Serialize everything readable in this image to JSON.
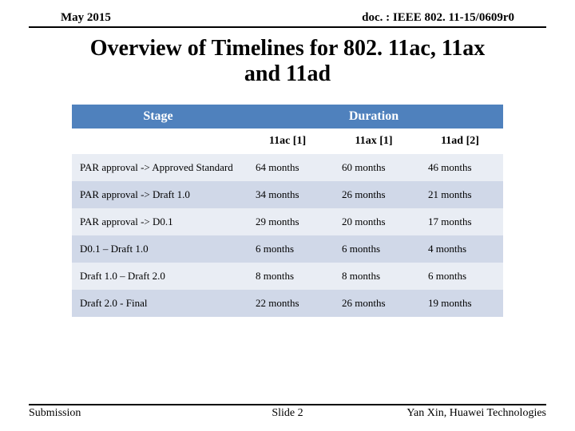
{
  "header": {
    "date": "May 2015",
    "docref": "doc. : IEEE 802. 11-15/0609r0"
  },
  "title_line1": "Overview of Timelines for 802. 11ac, 11ax",
  "title_line2": "and 11ad",
  "table": {
    "header_stage": "Stage",
    "header_duration": "Duration",
    "subheads": [
      "11ac [1]",
      "11ax [1]",
      "11ad [2]"
    ],
    "rows": [
      {
        "stage": "PAR approval -> Approved Standard",
        "vals": [
          "64 months",
          "60 months",
          "46 months"
        ]
      },
      {
        "stage": "PAR approval -> Draft 1.0",
        "vals": [
          "34 months",
          "26 months",
          "21 months"
        ]
      },
      {
        "stage": "PAR approval -> D0.1",
        "vals": [
          "29 months",
          "20 months",
          "17 months"
        ]
      },
      {
        "stage": "D0.1 – Draft 1.0",
        "vals": [
          "6 months",
          "6 months",
          "4 months"
        ]
      },
      {
        "stage": "Draft 1.0 – Draft 2.0",
        "vals": [
          "8 months",
          "8 months",
          "6 months"
        ]
      },
      {
        "stage": "Draft 2.0 - Final",
        "vals": [
          "22 months",
          "26 months",
          "19 months"
        ]
      }
    ]
  },
  "footer": {
    "left": "Submission",
    "center": "Slide 2",
    "right": "Yan Xin, Huawei Technologies"
  },
  "styling": {
    "header_bg": "#4f81bd",
    "row_odd_bg": "#e9edf4",
    "row_even_bg": "#d0d8e8",
    "page_bg": "#ffffff",
    "text_color": "#000000",
    "title_fontsize": 28,
    "body_fontsize": 13
  }
}
